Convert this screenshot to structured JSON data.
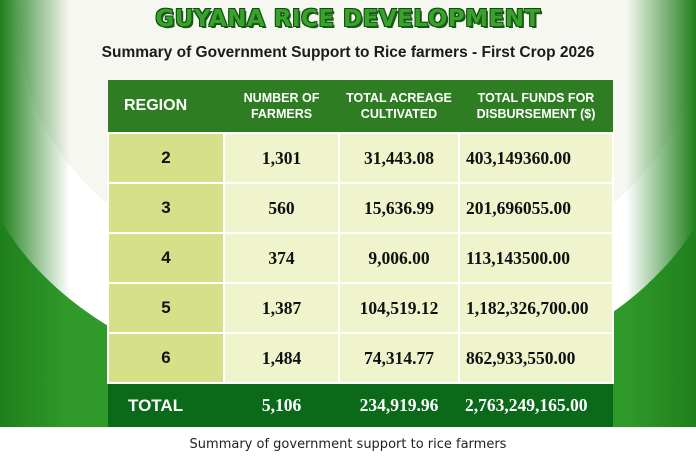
{
  "poster": {
    "title": "GUYANA RICE DEVELOPMENT",
    "subtitle": "Summary of  Government Support to Rice farmers - First Crop 2026",
    "colors": {
      "green_dark": "#2e7d22",
      "green_total": "#0a6a1a",
      "region_cell": "#d5e088",
      "data_cell": "#f0f4cc",
      "title": "#3aa12c"
    }
  },
  "table": {
    "headers": {
      "region": "REGION",
      "farmers": "NUMBER OF FARMERS",
      "acreage": "TOTAL ACREAGE CULTIVATED",
      "funds": "TOTAL FUNDS FOR DISBURSEMENT ($)"
    },
    "rows": [
      {
        "region": "2",
        "farmers": "1,301",
        "acreage": "31,443.08",
        "funds": "403,149360.00"
      },
      {
        "region": "3",
        "farmers": "560",
        "acreage": "15,636.99",
        "funds": "201,696055.00"
      },
      {
        "region": "4",
        "farmers": "374",
        "acreage": "9,006.00",
        "funds": "113,143500.00"
      },
      {
        "region": "5",
        "farmers": "1,387",
        "acreage": "104,519.12",
        "funds": "1,182,326,700.00"
      },
      {
        "region": "6",
        "farmers": "1,484",
        "acreage": "74,314.77",
        "funds": "862,933,550.00"
      }
    ],
    "total": {
      "label": "TOTAL",
      "farmers": "5,106",
      "acreage": "234,919.96",
      "funds": "2,763,249,165.00"
    }
  },
  "caption": "Summary of government support to rice farmers"
}
